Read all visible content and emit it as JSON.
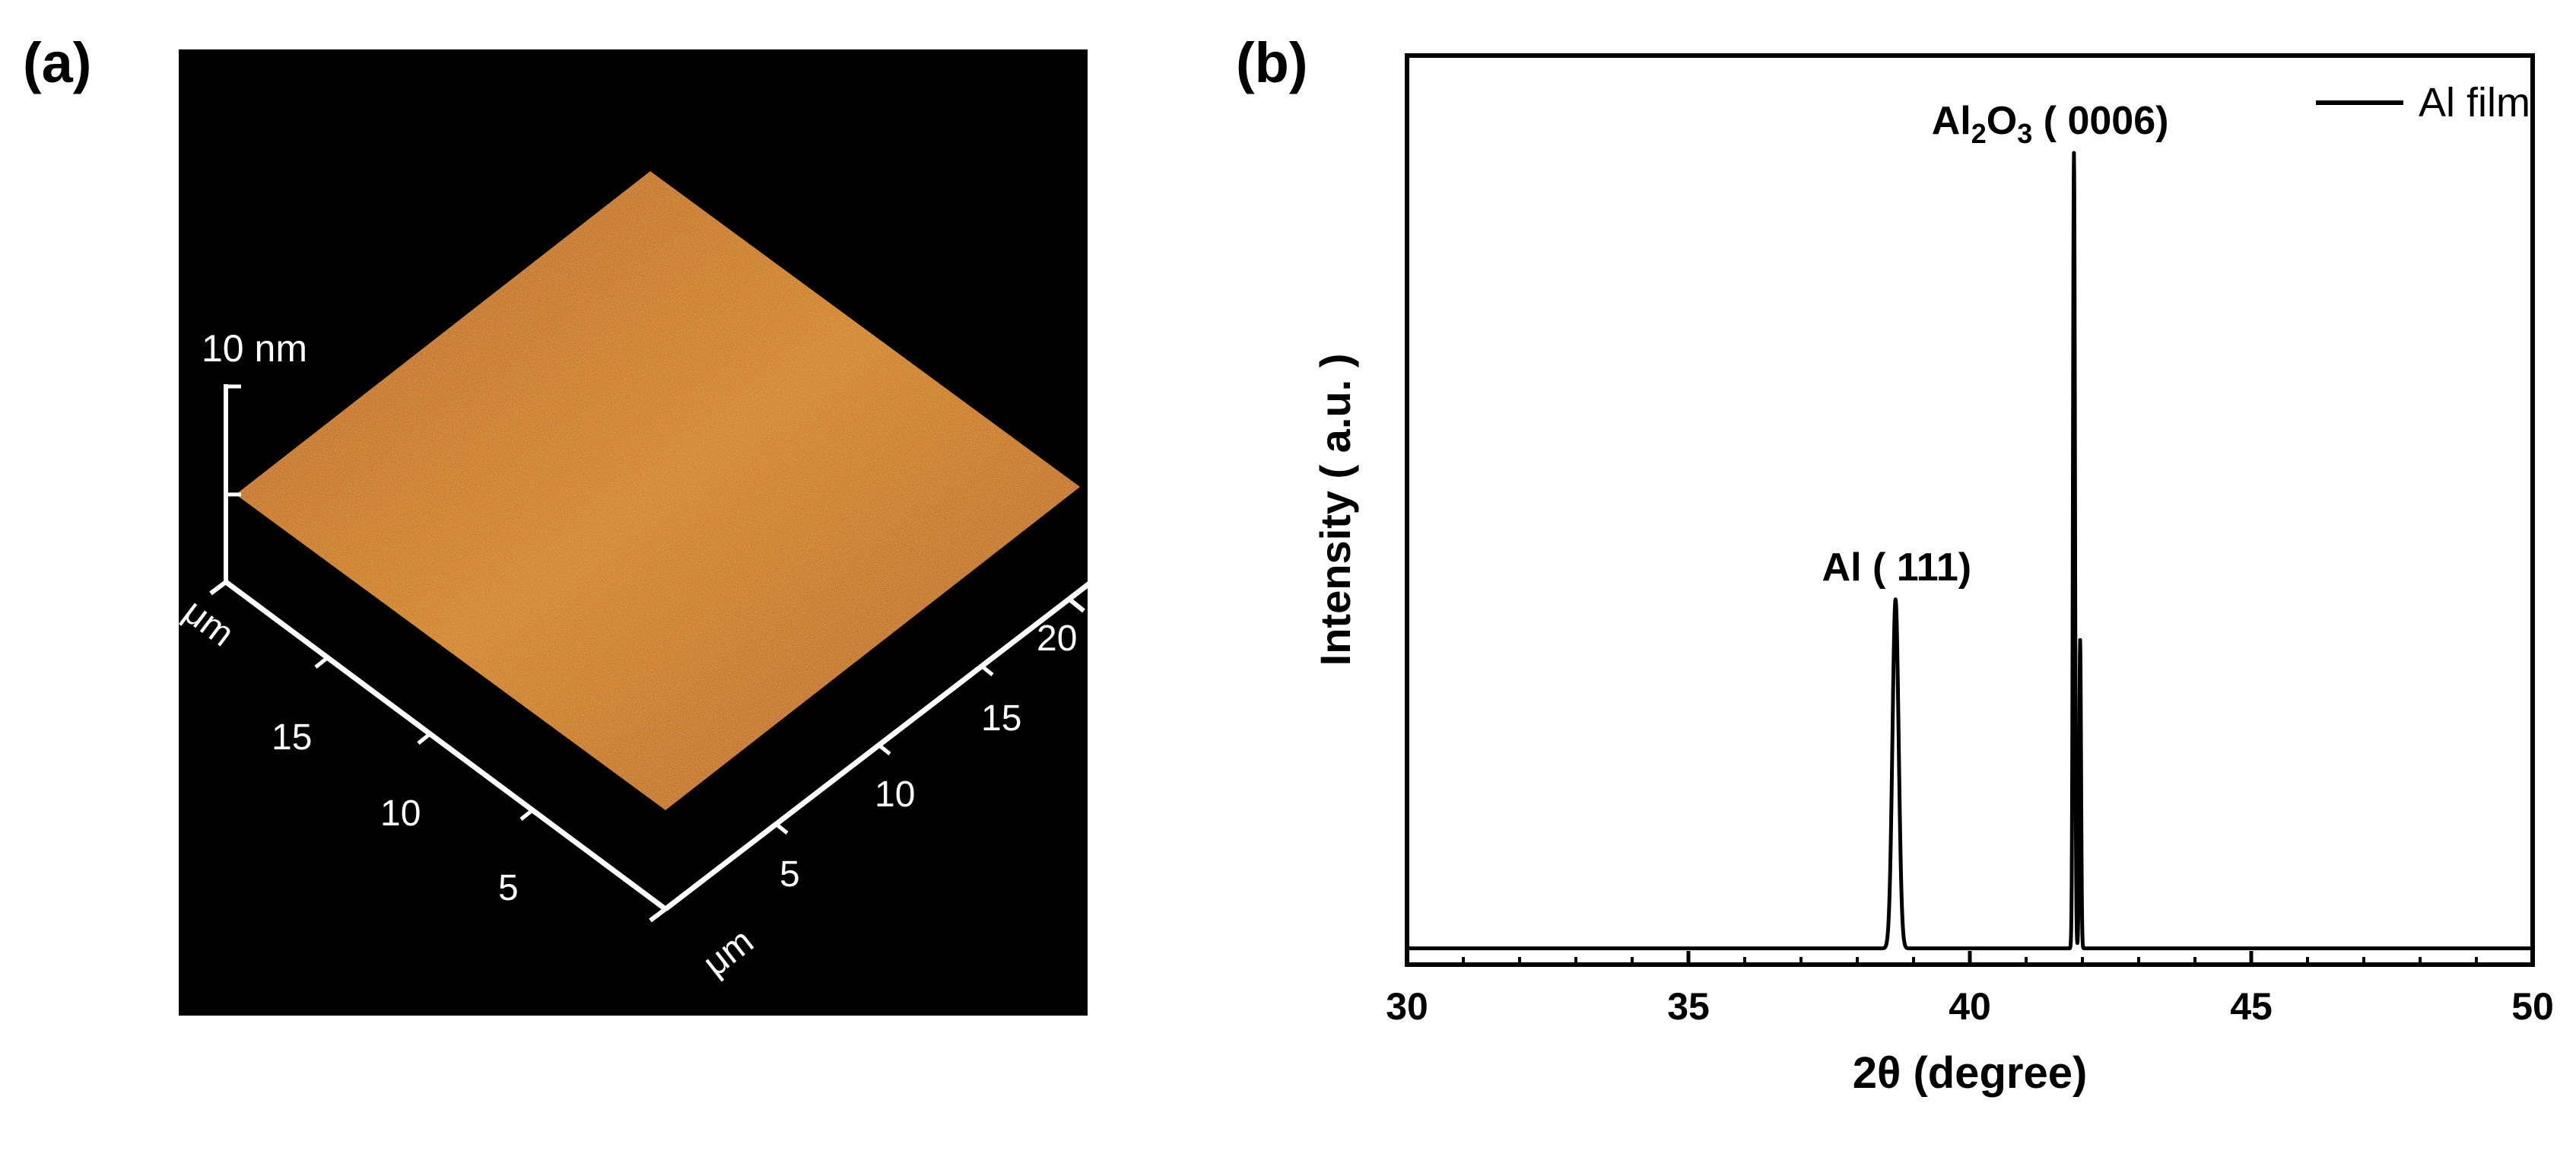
{
  "panels": {
    "a_label": "(a)",
    "b_label": "(b)"
  },
  "afm": {
    "z_scale_label": "10 nm",
    "left_axis_unit": "μm",
    "right_axis_unit": "μm",
    "left_axis_ticks": [
      "5",
      "10",
      "15"
    ],
    "right_axis_ticks": [
      "5",
      "10",
      "15",
      "20"
    ],
    "surface_color": "#c8651a",
    "background_color": "#000000"
  },
  "chart_data": {
    "type": "line",
    "xlabel": "2θ (degree)",
    "ylabel": "Intensity ( a.u. )",
    "xlim": [
      30,
      50
    ],
    "ylim": [
      0,
      1.12
    ],
    "x_ticks": [
      "30",
      "35",
      "40",
      "45",
      "50"
    ],
    "y_ticks_labeled": false,
    "grid": false,
    "legend": {
      "position": "top-right",
      "entries": [
        "Al film"
      ]
    },
    "annotations": [
      {
        "text": "Al ( 111)",
        "x": 38.7,
        "y": 0.45
      },
      {
        "text_main": "Al",
        "sub1": "2",
        "mid": "O",
        "sub2": "3",
        "tail": " ( 0006)",
        "x": 41.9,
        "y": 1.0
      }
    ],
    "series": [
      {
        "name": "Al film",
        "color": "#000000",
        "baseline": 0.02,
        "peaks": [
          {
            "center": 38.68,
            "height": 0.43,
            "width": 0.055
          },
          {
            "center": 41.85,
            "height": 0.98,
            "width": 0.018
          },
          {
            "center": 41.96,
            "height": 0.38,
            "width": 0.016
          }
        ]
      }
    ]
  }
}
